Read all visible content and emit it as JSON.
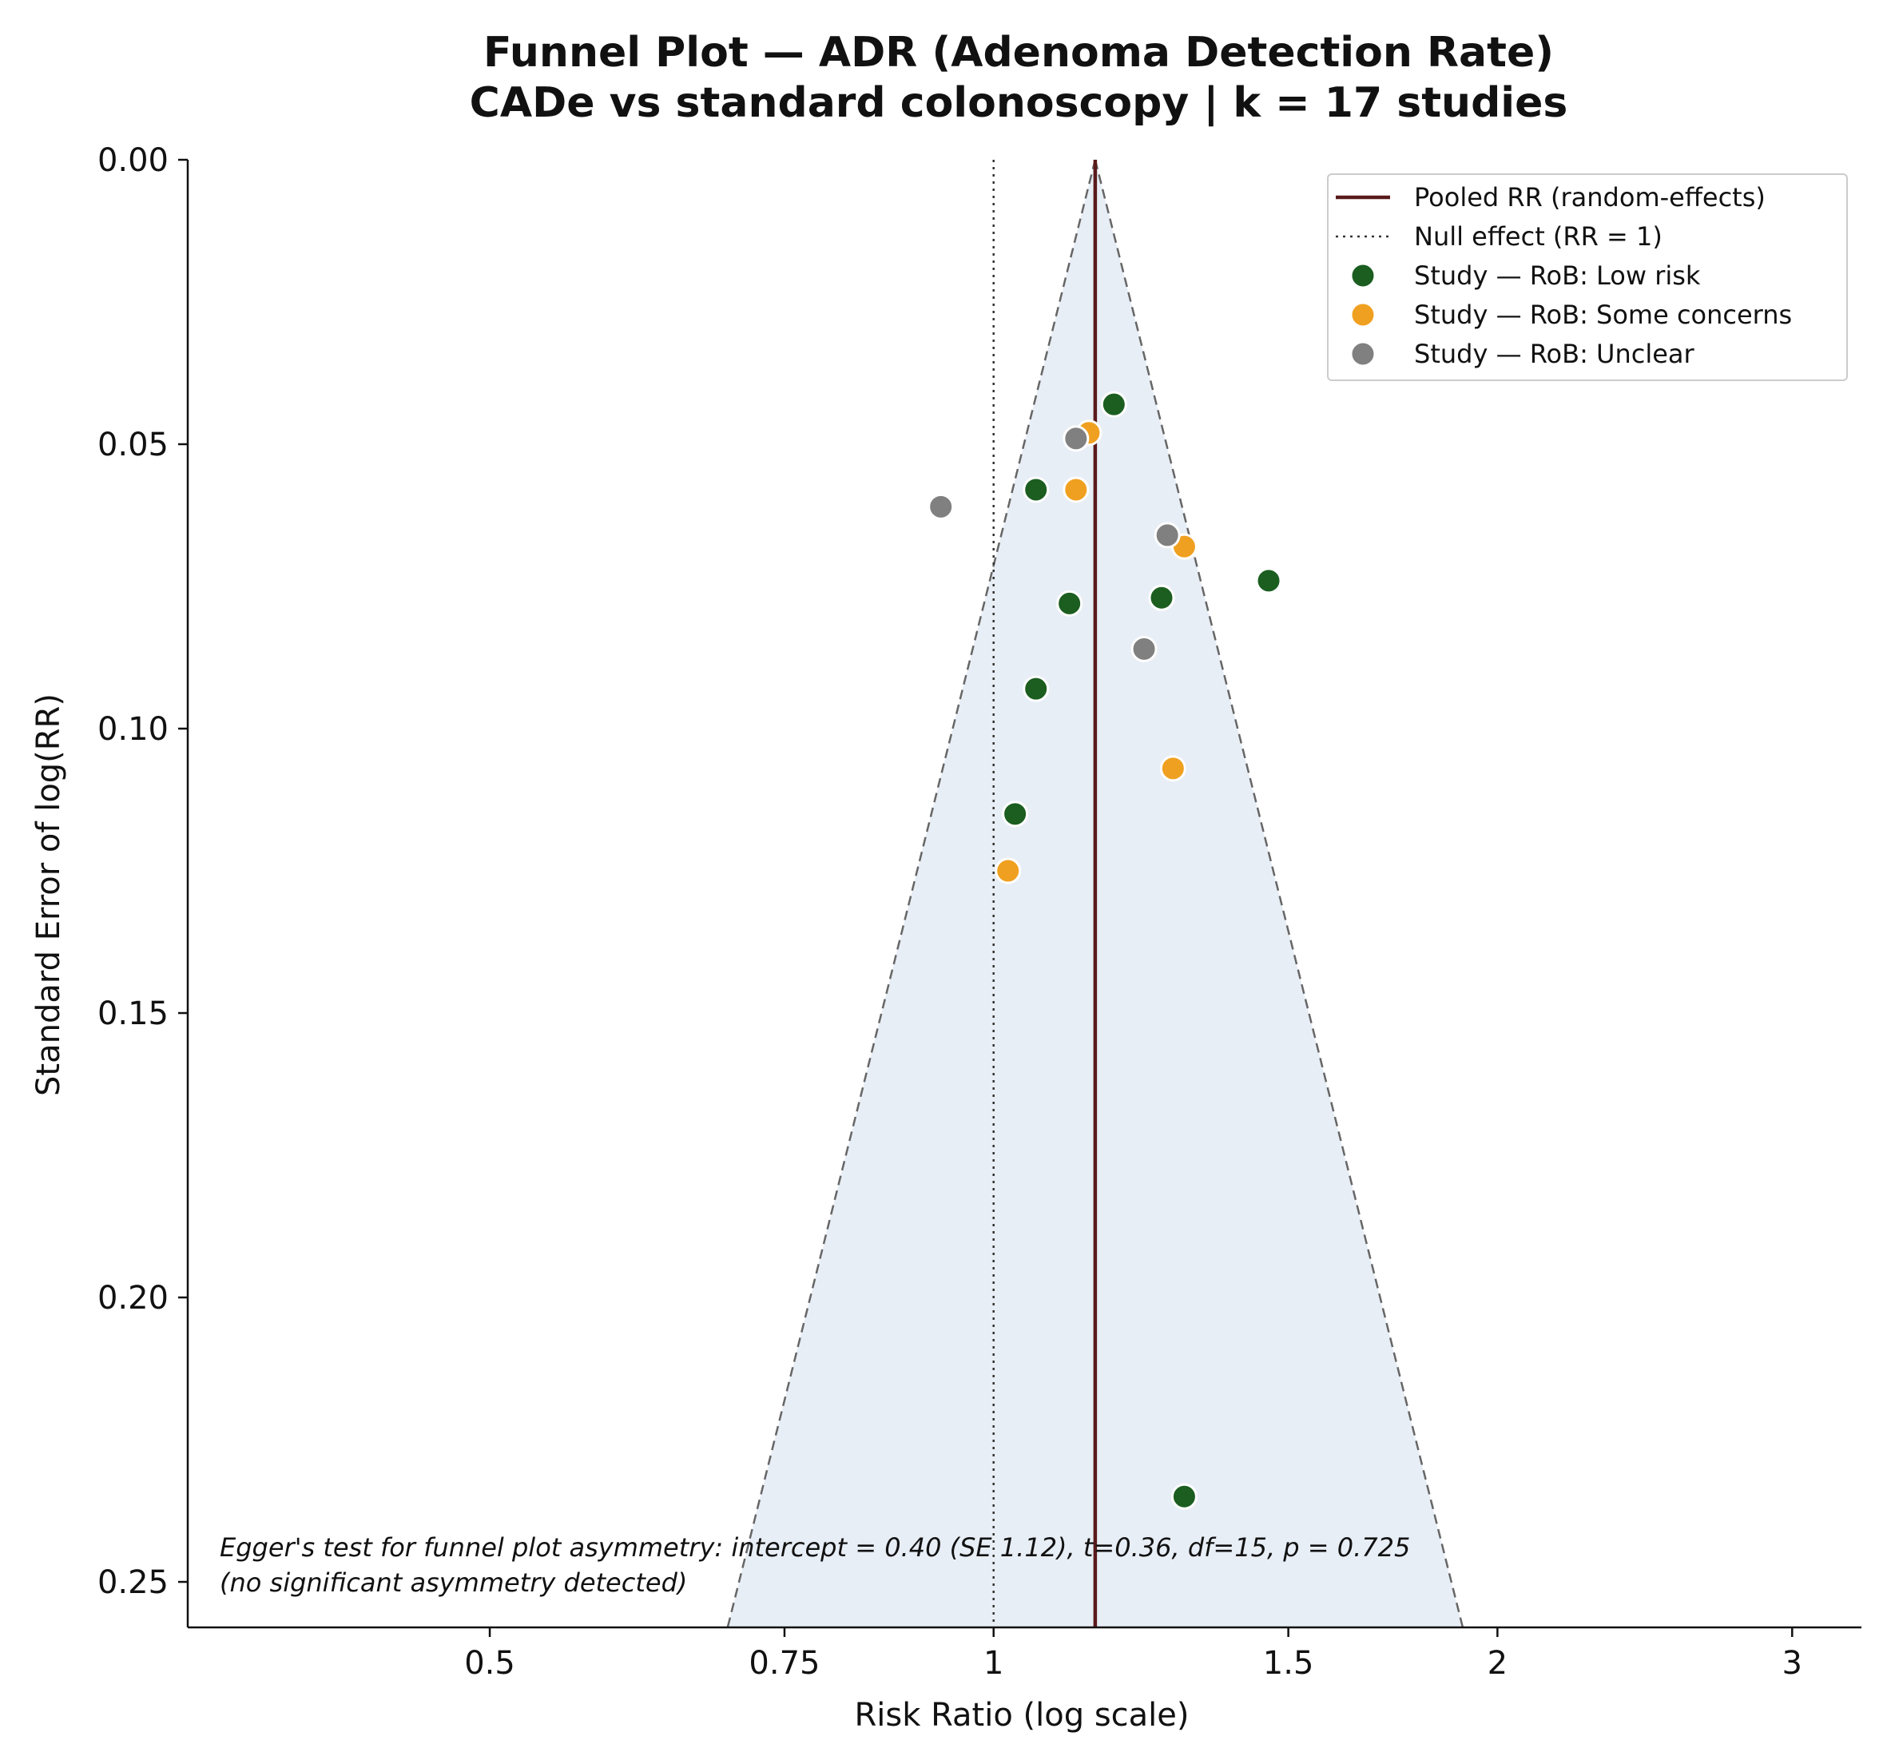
{
  "chart_data": {
    "type": "scatter",
    "title": "Funnel Plot — ADR (Adenoma Detection Rate)",
    "subtitle": "CADe vs standard colonoscopy | k = 17 studies",
    "xlabel": "Risk Ratio (log scale)",
    "ylabel": "Standard Error of log(RR)",
    "x_scale": "log",
    "xlim": [
      0.33,
      3.3
    ],
    "ylim": [
      0.258,
      0.0
    ],
    "y_inverted": true,
    "x_ticks": [
      0.5,
      0.75,
      1,
      1.5,
      2,
      3
    ],
    "x_tick_labels": [
      "0.5",
      "0.75",
      "1",
      "1.5",
      "2",
      "3"
    ],
    "y_ticks": [
      0.0,
      0.05,
      0.1,
      0.15,
      0.2,
      0.25
    ],
    "y_tick_labels": [
      "0.00",
      "0.05",
      "0.10",
      "0.15",
      "0.20",
      "0.25"
    ],
    "pooled_rr": 1.15,
    "null_rr": 1,
    "funnel_z": 1.96,
    "grid": false,
    "legend_position": "top-right",
    "legend": [
      {
        "label": "Pooled RR (random-effects)",
        "kind": "solid-line",
        "color": "#5a1a1a"
      },
      {
        "label": "Null effect (RR = 1)",
        "kind": "dotted-line",
        "color": "#333333"
      },
      {
        "label": "Study — RoB: Low risk",
        "kind": "marker",
        "color": "#1b5e20"
      },
      {
        "label": "Study — RoB: Some concerns",
        "kind": "marker",
        "color": "#f0a020"
      },
      {
        "label": "Study — RoB: Unclear",
        "kind": "marker",
        "color": "#808080"
      }
    ],
    "series": [
      {
        "name": "Study — RoB: Low risk",
        "color": "#1b5e20",
        "points": [
          {
            "rr": 1.18,
            "se": 0.043
          },
          {
            "rr": 1.06,
            "se": 0.058
          },
          {
            "rr": 1.46,
            "se": 0.074
          },
          {
            "rr": 1.26,
            "se": 0.077
          },
          {
            "rr": 1.11,
            "se": 0.078
          },
          {
            "rr": 1.06,
            "se": 0.093
          },
          {
            "rr": 1.03,
            "se": 0.115
          },
          {
            "rr": 1.3,
            "se": 0.235
          }
        ]
      },
      {
        "name": "Study — RoB: Some concerns",
        "color": "#f0a020",
        "points": [
          {
            "rr": 1.14,
            "se": 0.048
          },
          {
            "rr": 1.12,
            "se": 0.058
          },
          {
            "rr": 1.3,
            "se": 0.068
          },
          {
            "rr": 1.28,
            "se": 0.107
          },
          {
            "rr": 1.02,
            "se": 0.125
          }
        ]
      },
      {
        "name": "Study — RoB: Unclear",
        "color": "#808080",
        "points": [
          {
            "rr": 1.12,
            "se": 0.049
          },
          {
            "rr": 0.93,
            "se": 0.061
          },
          {
            "rr": 1.27,
            "se": 0.066
          },
          {
            "rr": 1.23,
            "se": 0.086
          }
        ]
      }
    ],
    "annotation": [
      "Egger's test for funnel plot asymmetry: intercept = 0.40 (SE 1.12), t=0.36, df=15, p = 0.725",
      "(no significant asymmetry detected)"
    ],
    "colors": {
      "funnel_fill": "#e8eef6",
      "funnel_edge": "#666666",
      "pooled_line": "#5a1a1a",
      "null_line": "#333333",
      "axis": "#111111"
    }
  }
}
